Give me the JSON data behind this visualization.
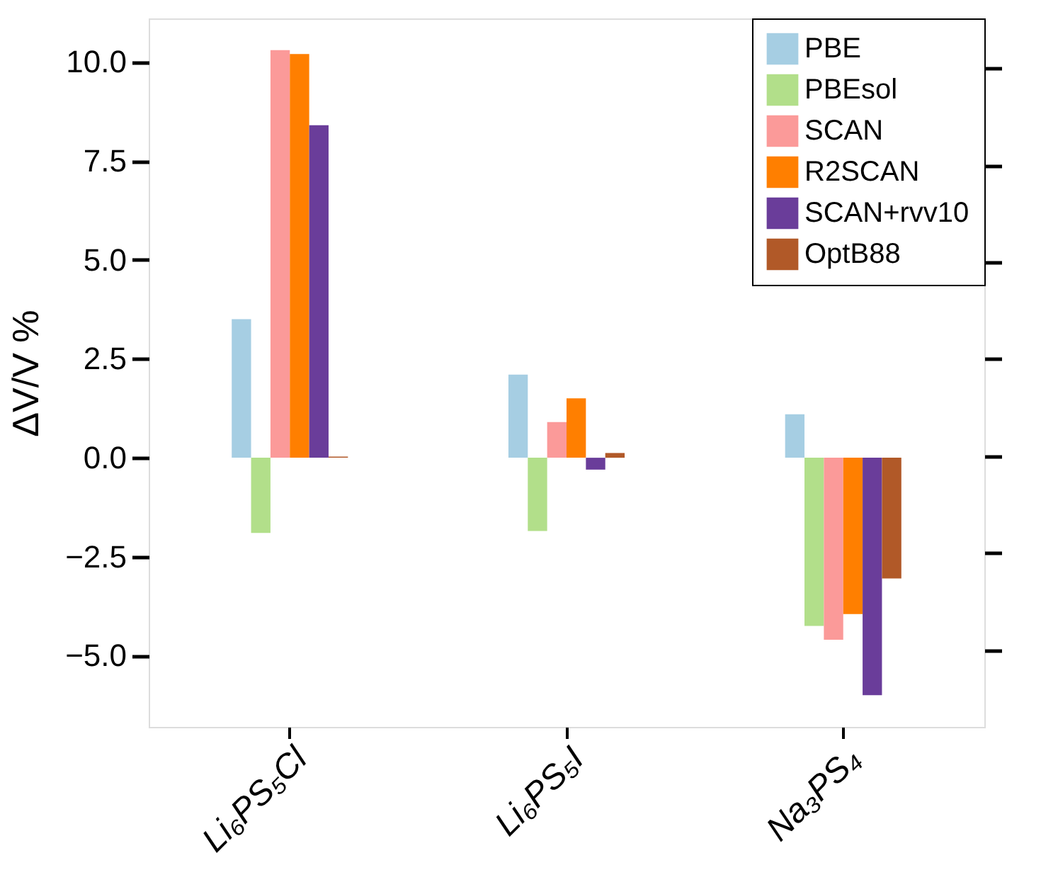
{
  "chart_data": {
    "type": "bar",
    "ylabel": "ΔV/V %",
    "categories": [
      "Li₆PS₅Cl",
      "Li₆PS₅I",
      "Na₃PS₄"
    ],
    "series": [
      {
        "name": "PBE",
        "color": "#a6cee3",
        "values": [
          3.5,
          2.1,
          1.1
        ]
      },
      {
        "name": "PBEsol",
        "color": "#b2df8a",
        "values": [
          -1.9,
          -1.85,
          -4.25
        ]
      },
      {
        "name": "SCAN",
        "color": "#fb9a99",
        "values": [
          10.3,
          0.9,
          -4.6
        ]
      },
      {
        "name": "R2SCAN",
        "color": "#ff7f00",
        "values": [
          10.2,
          1.5,
          -3.95
        ]
      },
      {
        "name": "SCAN+rvv10",
        "color": "#6a3d9a",
        "values": [
          8.4,
          -0.3,
          -6.0
        ]
      },
      {
        "name": "OptB88",
        "color": "#b15928",
        "values": [
          0.03,
          0.12,
          -3.05
        ]
      }
    ],
    "ylim": [
      -6.8,
      11.1
    ],
    "yticks": [
      {
        "value": -5,
        "label": "−5.0"
      },
      {
        "value": -2.5,
        "label": "−2.5"
      },
      {
        "value": 0,
        "label": "0.0"
      },
      {
        "value": 2.5,
        "label": "2.5"
      },
      {
        "value": 5,
        "label": "5.0"
      },
      {
        "value": 7.5,
        "label": "7.5"
      },
      {
        "value": 10,
        "label": "10.0"
      }
    ],
    "grid": false,
    "legend": "top right"
  }
}
